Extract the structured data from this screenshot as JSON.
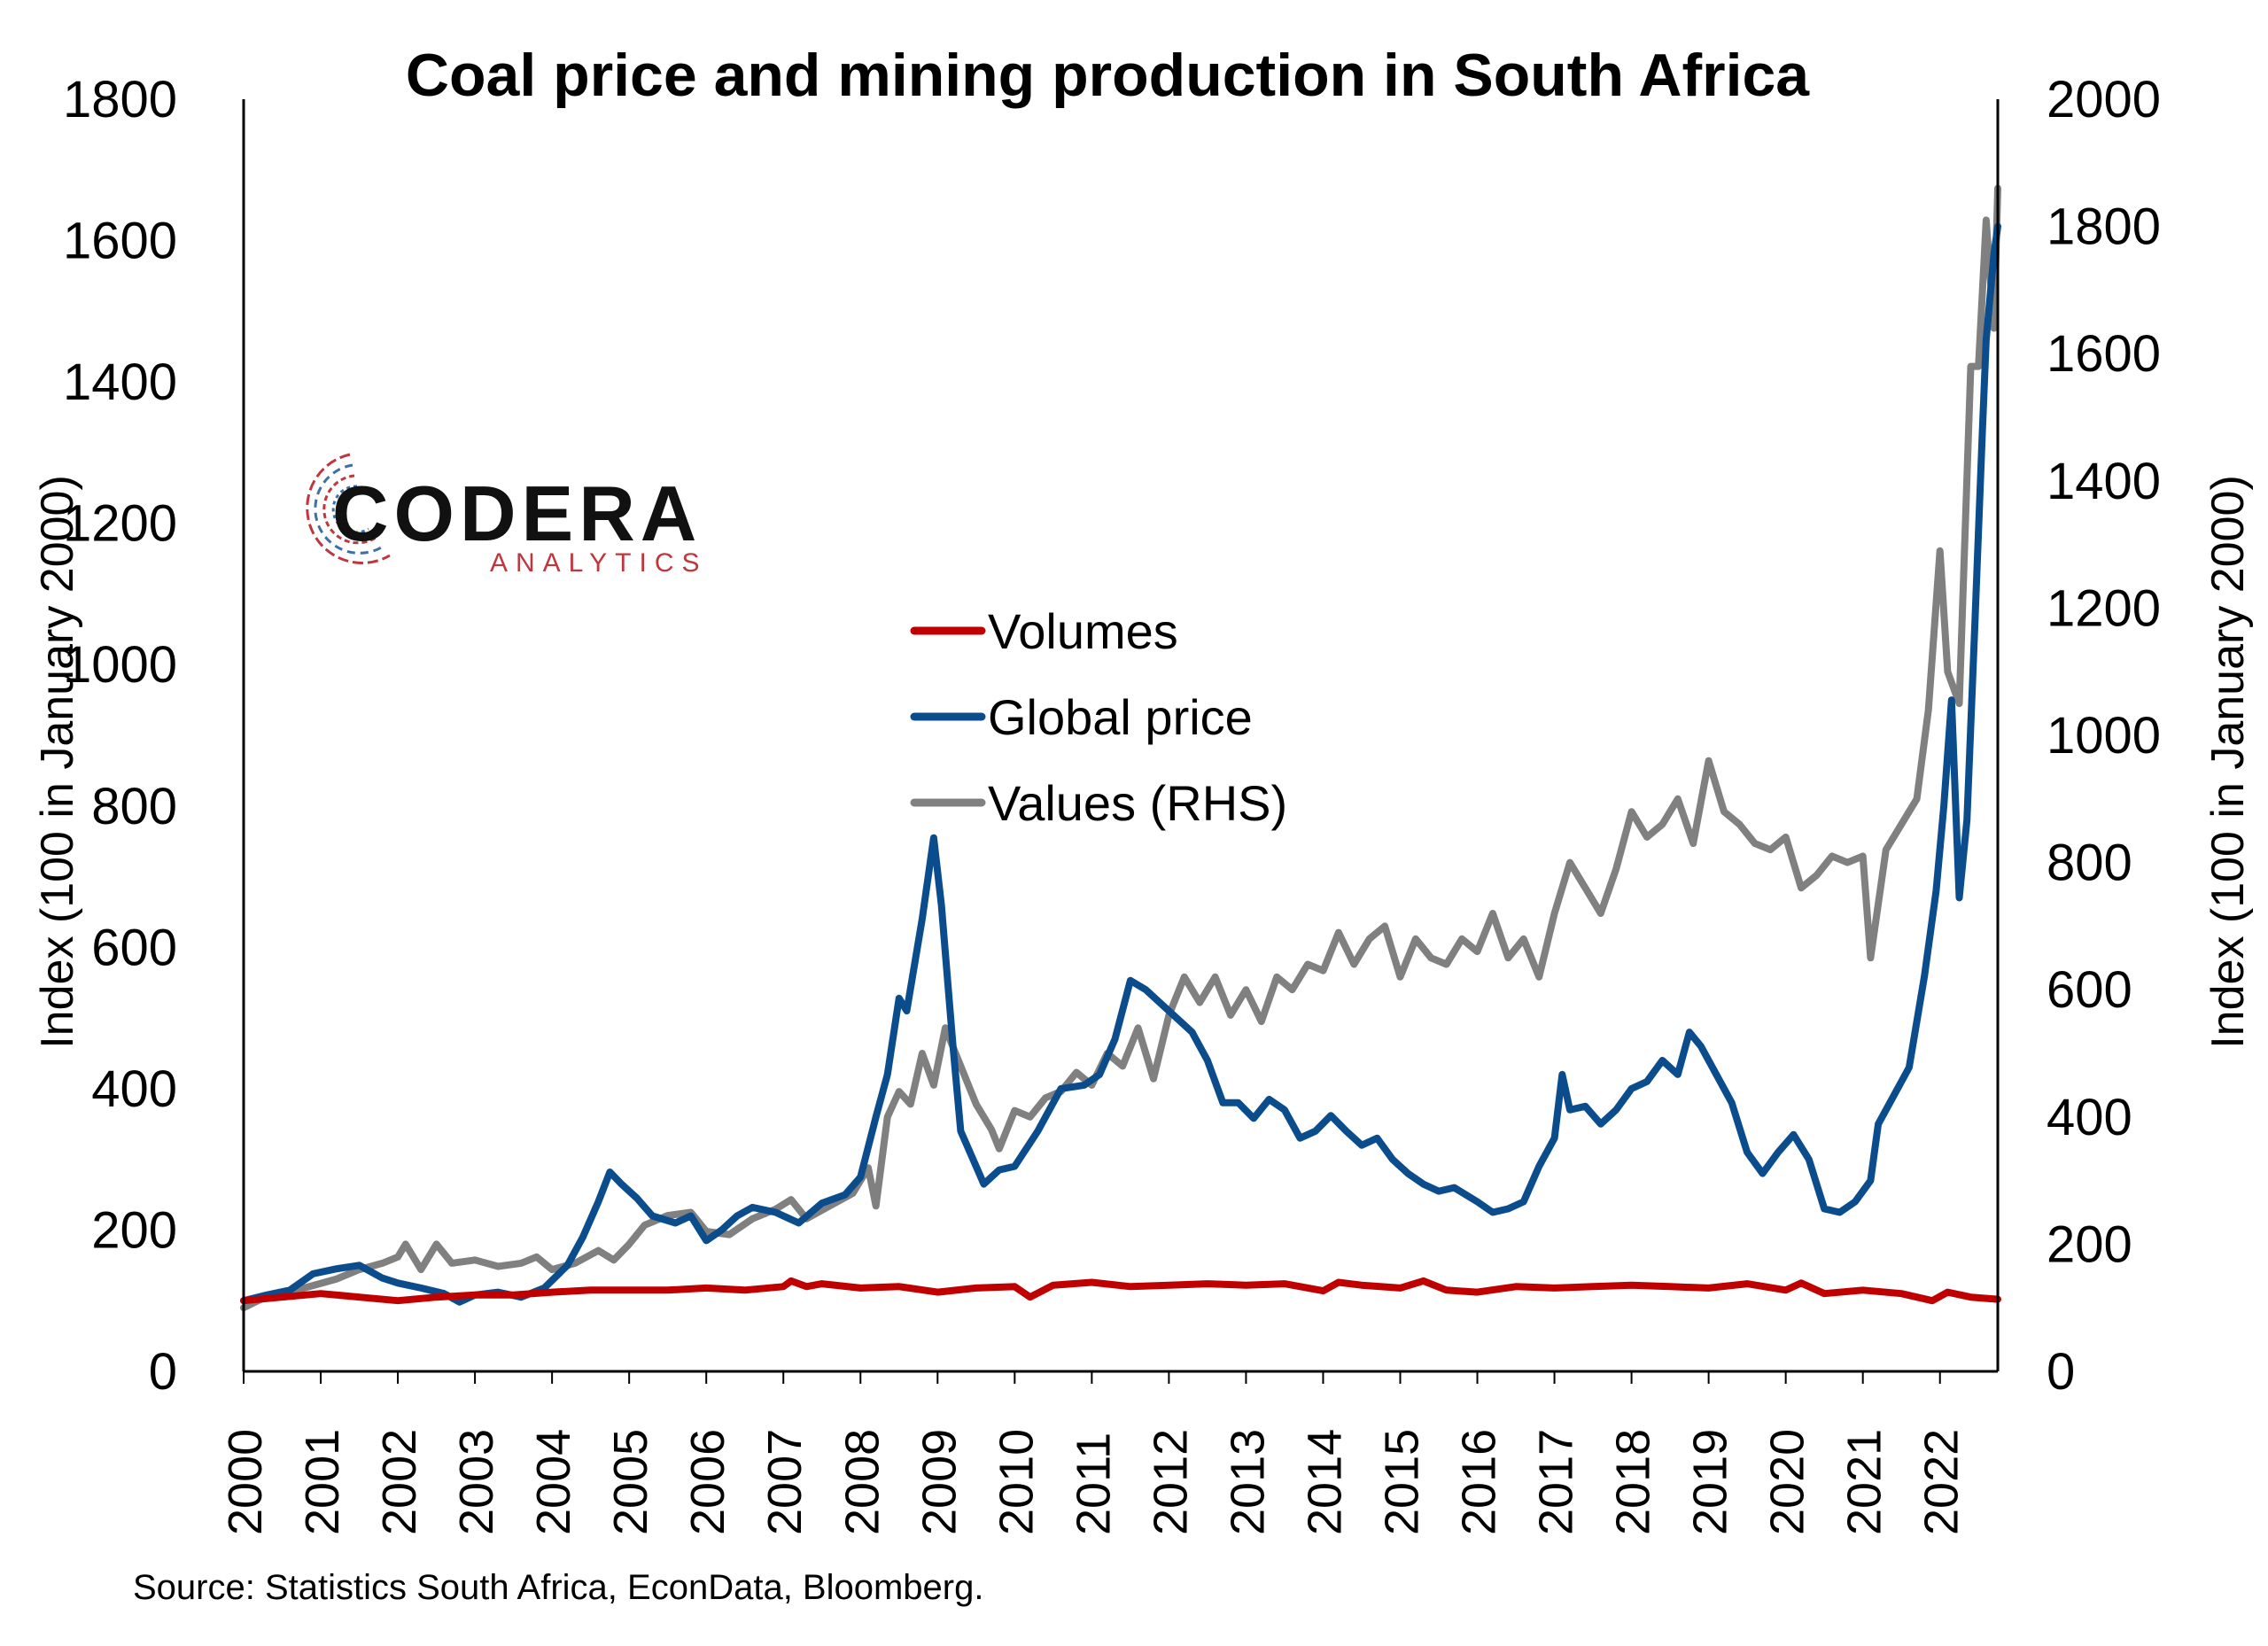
{
  "chart_data": {
    "type": "line",
    "title": "Coal price and mining production in South Africa",
    "ylabel_left": "Index (100 in January 2000)",
    "ylabel_right": "Index (100 in January 2000)",
    "source": "Source: Statistics South Africa, EconData, Bloomberg.",
    "left_axis": {
      "min": 0,
      "max": 1800,
      "ticks": [
        0,
        200,
        400,
        600,
        800,
        1000,
        1200,
        1400,
        1600,
        1800
      ]
    },
    "right_axis": {
      "min": 0,
      "max": 2000,
      "ticks": [
        0,
        200,
        400,
        600,
        800,
        1000,
        1200,
        1400,
        1600,
        1800,
        2000
      ]
    },
    "x_ticks": [
      "2000",
      "2001",
      "2002",
      "2003",
      "2004",
      "2005",
      "2006",
      "2007",
      "2008",
      "2009",
      "2010",
      "2011",
      "2012",
      "2013",
      "2014",
      "2015",
      "2016",
      "2017",
      "2018",
      "2019",
      "2020",
      "2021",
      "2022"
    ],
    "x_range": [
      2000,
      2022.75
    ],
    "legend_position": "center",
    "grid": false,
    "logo": {
      "name": "CODERA",
      "subtitle": "ANALYTICS"
    },
    "series": [
      {
        "name": "Volumes",
        "axis": "left",
        "color": "#C00000",
        "points": [
          [
            2000.0,
            100
          ],
          [
            2000.5,
            105
          ],
          [
            2001.0,
            110
          ],
          [
            2001.5,
            105
          ],
          [
            2002.0,
            100
          ],
          [
            2002.5,
            105
          ],
          [
            2003.0,
            108
          ],
          [
            2003.5,
            108
          ],
          [
            2004.0,
            112
          ],
          [
            2004.5,
            115
          ],
          [
            2005.0,
            115
          ],
          [
            2005.5,
            115
          ],
          [
            2006.0,
            118
          ],
          [
            2006.5,
            115
          ],
          [
            2007.0,
            120
          ],
          [
            2007.1,
            128
          ],
          [
            2007.3,
            120
          ],
          [
            2007.5,
            124
          ],
          [
            2008.0,
            118
          ],
          [
            2008.5,
            120
          ],
          [
            2009.0,
            112
          ],
          [
            2009.5,
            118
          ],
          [
            2010.0,
            120
          ],
          [
            2010.2,
            105
          ],
          [
            2010.5,
            122
          ],
          [
            2011.0,
            126
          ],
          [
            2011.5,
            120
          ],
          [
            2012.0,
            122
          ],
          [
            2012.5,
            124
          ],
          [
            2013.0,
            122
          ],
          [
            2013.5,
            124
          ],
          [
            2014.0,
            114
          ],
          [
            2014.2,
            126
          ],
          [
            2014.5,
            122
          ],
          [
            2015.0,
            118
          ],
          [
            2015.3,
            128
          ],
          [
            2015.6,
            115
          ],
          [
            2016.0,
            112
          ],
          [
            2016.5,
            120
          ],
          [
            2017.0,
            118
          ],
          [
            2017.5,
            120
          ],
          [
            2018.0,
            122
          ],
          [
            2018.5,
            120
          ],
          [
            2019.0,
            118
          ],
          [
            2019.5,
            124
          ],
          [
            2020.0,
            115
          ],
          [
            2020.2,
            125
          ],
          [
            2020.5,
            110
          ],
          [
            2021.0,
            115
          ],
          [
            2021.5,
            110
          ],
          [
            2021.9,
            100
          ],
          [
            2022.1,
            112
          ],
          [
            2022.4,
            105
          ],
          [
            2022.75,
            102
          ]
        ]
      },
      {
        "name": "Global price",
        "axis": "left",
        "color": "#0B4D8C",
        "points": [
          [
            2000.0,
            100
          ],
          [
            2000.3,
            108
          ],
          [
            2000.6,
            115
          ],
          [
            2000.9,
            138
          ],
          [
            2001.2,
            145
          ],
          [
            2001.5,
            150
          ],
          [
            2001.8,
            132
          ],
          [
            2002.0,
            125
          ],
          [
            2002.3,
            118
          ],
          [
            2002.6,
            110
          ],
          [
            2002.8,
            98
          ],
          [
            2003.0,
            108
          ],
          [
            2003.3,
            112
          ],
          [
            2003.6,
            105
          ],
          [
            2003.9,
            118
          ],
          [
            2004.2,
            150
          ],
          [
            2004.4,
            190
          ],
          [
            2004.6,
            240
          ],
          [
            2004.75,
            282
          ],
          [
            2004.9,
            265
          ],
          [
            2005.1,
            245
          ],
          [
            2005.3,
            220
          ],
          [
            2005.6,
            210
          ],
          [
            2005.8,
            220
          ],
          [
            2006.0,
            185
          ],
          [
            2006.2,
            200
          ],
          [
            2006.4,
            220
          ],
          [
            2006.6,
            232
          ],
          [
            2006.9,
            225
          ],
          [
            2007.2,
            210
          ],
          [
            2007.5,
            238
          ],
          [
            2007.8,
            250
          ],
          [
            2008.0,
            275
          ],
          [
            2008.2,
            360
          ],
          [
            2008.35,
            420
          ],
          [
            2008.5,
            528
          ],
          [
            2008.6,
            510
          ],
          [
            2008.8,
            640
          ],
          [
            2008.95,
            755
          ],
          [
            2009.05,
            660
          ],
          [
            2009.2,
            460
          ],
          [
            2009.3,
            340
          ],
          [
            2009.5,
            290
          ],
          [
            2009.6,
            265
          ],
          [
            2009.8,
            285
          ],
          [
            2010.0,
            290
          ],
          [
            2010.3,
            340
          ],
          [
            2010.6,
            400
          ],
          [
            2010.9,
            405
          ],
          [
            2011.1,
            420
          ],
          [
            2011.3,
            470
          ],
          [
            2011.5,
            553
          ],
          [
            2011.7,
            540
          ],
          [
            2011.9,
            520
          ],
          [
            2012.1,
            500
          ],
          [
            2012.3,
            480
          ],
          [
            2012.5,
            440
          ],
          [
            2012.7,
            380
          ],
          [
            2012.9,
            380
          ],
          [
            2013.1,
            358
          ],
          [
            2013.3,
            385
          ],
          [
            2013.5,
            370
          ],
          [
            2013.7,
            330
          ],
          [
            2013.9,
            340
          ],
          [
            2014.1,
            362
          ],
          [
            2014.3,
            340
          ],
          [
            2014.5,
            320
          ],
          [
            2014.7,
            330
          ],
          [
            2014.9,
            300
          ],
          [
            2015.1,
            280
          ],
          [
            2015.3,
            265
          ],
          [
            2015.5,
            255
          ],
          [
            2015.7,
            260
          ],
          [
            2016.0,
            240
          ],
          [
            2016.2,
            225
          ],
          [
            2016.4,
            230
          ],
          [
            2016.6,
            240
          ],
          [
            2016.8,
            290
          ],
          [
            2017.0,
            330
          ],
          [
            2017.1,
            420
          ],
          [
            2017.2,
            370
          ],
          [
            2017.4,
            375
          ],
          [
            2017.6,
            350
          ],
          [
            2017.8,
            370
          ],
          [
            2018.0,
            400
          ],
          [
            2018.2,
            410
          ],
          [
            2018.4,
            440
          ],
          [
            2018.6,
            420
          ],
          [
            2018.75,
            480
          ],
          [
            2018.9,
            460
          ],
          [
            2019.1,
            420
          ],
          [
            2019.3,
            380
          ],
          [
            2019.5,
            310
          ],
          [
            2019.7,
            280
          ],
          [
            2019.9,
            310
          ],
          [
            2020.1,
            335
          ],
          [
            2020.3,
            300
          ],
          [
            2020.5,
            230
          ],
          [
            2020.7,
            225
          ],
          [
            2020.9,
            240
          ],
          [
            2021.1,
            270
          ],
          [
            2021.2,
            350
          ],
          [
            2021.4,
            390
          ],
          [
            2021.6,
            430
          ],
          [
            2021.8,
            560
          ],
          [
            2021.95,
            680
          ],
          [
            2022.05,
            800
          ],
          [
            2022.15,
            950
          ],
          [
            2022.25,
            670
          ],
          [
            2022.35,
            780
          ],
          [
            2022.45,
            1050
          ],
          [
            2022.55,
            1330
          ],
          [
            2022.6,
            1460
          ],
          [
            2022.7,
            1580
          ],
          [
            2022.75,
            1620
          ]
        ]
      },
      {
        "name": "Values (RHS)",
        "axis": "right",
        "color": "#808080",
        "points": [
          [
            2000.0,
            100
          ],
          [
            2000.3,
            118
          ],
          [
            2000.6,
            125
          ],
          [
            2000.9,
            135
          ],
          [
            2001.2,
            145
          ],
          [
            2001.5,
            160
          ],
          [
            2001.8,
            170
          ],
          [
            2002.0,
            180
          ],
          [
            2002.1,
            200
          ],
          [
            2002.3,
            160
          ],
          [
            2002.5,
            200
          ],
          [
            2002.7,
            170
          ],
          [
            2003.0,
            175
          ],
          [
            2003.3,
            165
          ],
          [
            2003.6,
            170
          ],
          [
            2003.8,
            180
          ],
          [
            2004.0,
            160
          ],
          [
            2004.3,
            170
          ],
          [
            2004.6,
            190
          ],
          [
            2004.8,
            175
          ],
          [
            2005.0,
            200
          ],
          [
            2005.2,
            230
          ],
          [
            2005.5,
            245
          ],
          [
            2005.8,
            250
          ],
          [
            2006.0,
            220
          ],
          [
            2006.3,
            215
          ],
          [
            2006.6,
            240
          ],
          [
            2006.9,
            255
          ],
          [
            2007.1,
            270
          ],
          [
            2007.3,
            240
          ],
          [
            2007.6,
            260
          ],
          [
            2007.9,
            280
          ],
          [
            2008.1,
            320
          ],
          [
            2008.2,
            260
          ],
          [
            2008.35,
            400
          ],
          [
            2008.5,
            440
          ],
          [
            2008.65,
            420
          ],
          [
            2008.8,
            500
          ],
          [
            2008.95,
            450
          ],
          [
            2009.1,
            540
          ],
          [
            2009.3,
            480
          ],
          [
            2009.5,
            420
          ],
          [
            2009.7,
            380
          ],
          [
            2009.8,
            350
          ],
          [
            2010.0,
            410
          ],
          [
            2010.2,
            400
          ],
          [
            2010.4,
            430
          ],
          [
            2010.6,
            440
          ],
          [
            2010.8,
            470
          ],
          [
            2011.0,
            450
          ],
          [
            2011.2,
            500
          ],
          [
            2011.4,
            480
          ],
          [
            2011.6,
            540
          ],
          [
            2011.8,
            460
          ],
          [
            2012.0,
            560
          ],
          [
            2012.2,
            620
          ],
          [
            2012.4,
            580
          ],
          [
            2012.6,
            620
          ],
          [
            2012.8,
            560
          ],
          [
            2013.0,
            600
          ],
          [
            2013.2,
            550
          ],
          [
            2013.4,
            620
          ],
          [
            2013.6,
            600
          ],
          [
            2013.8,
            640
          ],
          [
            2014.0,
            630
          ],
          [
            2014.2,
            690
          ],
          [
            2014.4,
            640
          ],
          [
            2014.6,
            680
          ],
          [
            2014.8,
            700
          ],
          [
            2015.0,
            620
          ],
          [
            2015.2,
            680
          ],
          [
            2015.4,
            650
          ],
          [
            2015.6,
            640
          ],
          [
            2015.8,
            680
          ],
          [
            2016.0,
            660
          ],
          [
            2016.2,
            720
          ],
          [
            2016.4,
            650
          ],
          [
            2016.6,
            680
          ],
          [
            2016.8,
            620
          ],
          [
            2017.0,
            720
          ],
          [
            2017.2,
            800
          ],
          [
            2017.4,
            760
          ],
          [
            2017.6,
            720
          ],
          [
            2017.8,
            790
          ],
          [
            2018.0,
            880
          ],
          [
            2018.2,
            840
          ],
          [
            2018.4,
            860
          ],
          [
            2018.6,
            900
          ],
          [
            2018.8,
            830
          ],
          [
            2019.0,
            960
          ],
          [
            2019.2,
            880
          ],
          [
            2019.4,
            860
          ],
          [
            2019.6,
            830
          ],
          [
            2019.8,
            820
          ],
          [
            2020.0,
            840
          ],
          [
            2020.2,
            760
          ],
          [
            2020.4,
            780
          ],
          [
            2020.6,
            810
          ],
          [
            2020.8,
            800
          ],
          [
            2021.0,
            810
          ],
          [
            2021.1,
            650
          ],
          [
            2021.3,
            820
          ],
          [
            2021.5,
            860
          ],
          [
            2021.7,
            900
          ],
          [
            2021.85,
            1040
          ],
          [
            2022.0,
            1290
          ],
          [
            2022.1,
            1100
          ],
          [
            2022.25,
            1050
          ],
          [
            2022.4,
            1580
          ],
          [
            2022.5,
            1580
          ],
          [
            2022.6,
            1810
          ],
          [
            2022.7,
            1640
          ],
          [
            2022.75,
            1860
          ]
        ]
      }
    ]
  }
}
